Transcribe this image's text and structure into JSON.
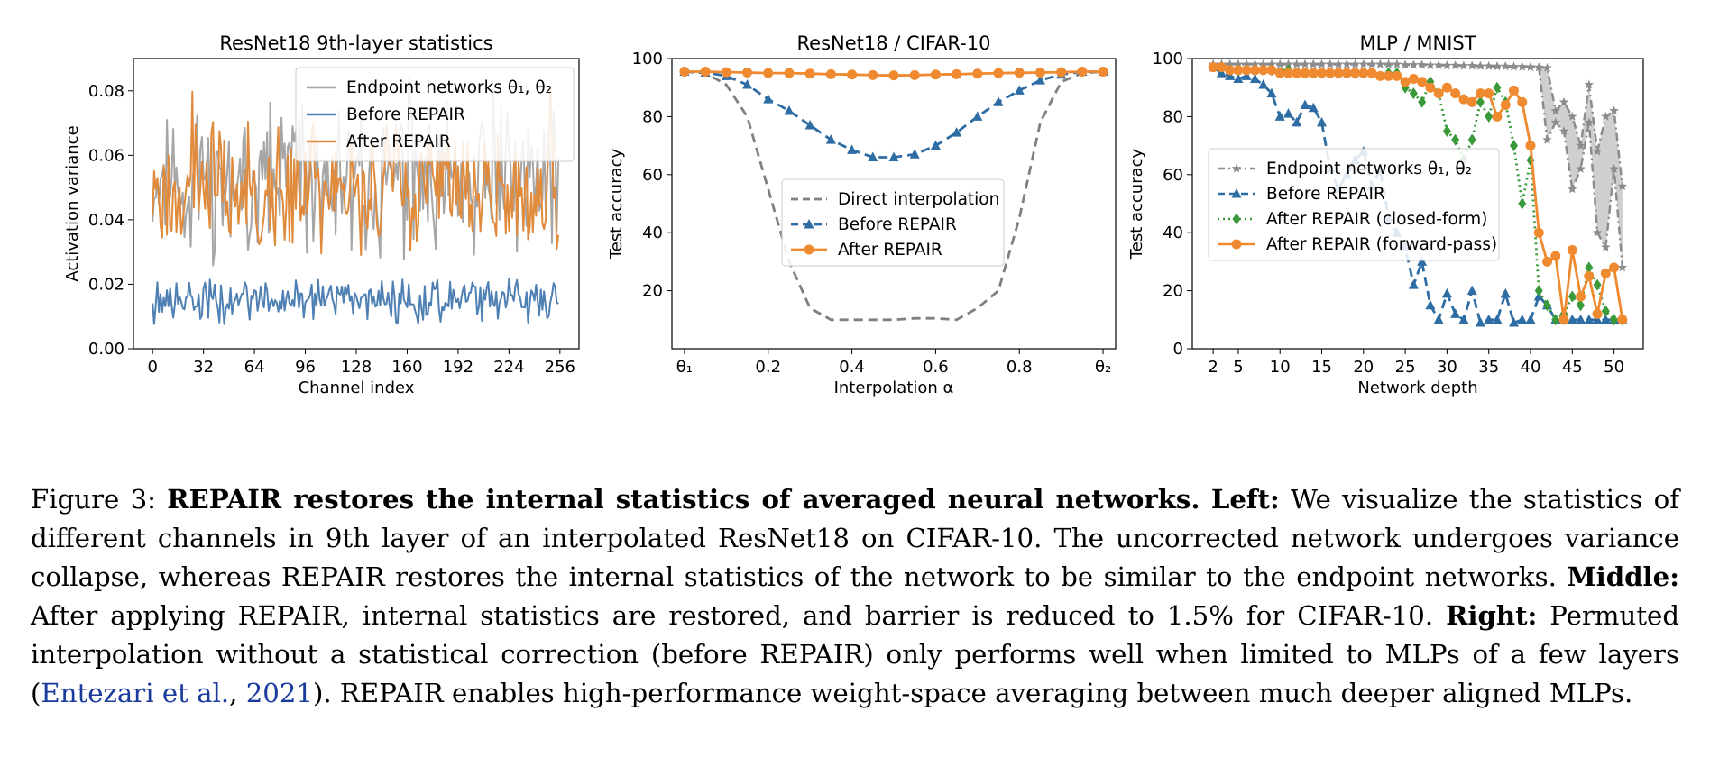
{
  "chart_data": [
    {
      "type": "line",
      "title": "ResNet18 9th-layer statistics",
      "xlabel": "Channel index",
      "ylabel": "Activation variance",
      "xlim": [
        -12,
        268
      ],
      "ylim": [
        0,
        0.09
      ],
      "xticks": [
        0,
        32,
        64,
        96,
        128,
        160,
        192,
        224,
        256
      ],
      "yticks": [
        0.0,
        0.02,
        0.04,
        0.06,
        0.08
      ],
      "ytick_labels": [
        "0.00",
        "0.02",
        "0.04",
        "0.06",
        "0.08"
      ],
      "legend_position": "top-right",
      "legend": [
        {
          "label": "Endpoint networks θ₁, θ₂",
          "color": "#a6a6a6"
        },
        {
          "label": "Before REPAIR",
          "color": "#4f80b3"
        },
        {
          "label": "After REPAIR",
          "color": "#e08a3c"
        }
      ],
      "series": [
        {
          "name": "Endpoint networks θ₁, θ₂",
          "color": "#a6a6a6",
          "mean": 0.052,
          "amp": 0.026,
          "seed": 11,
          "n": 256
        },
        {
          "name": "After REPAIR",
          "color": "#e08a3c",
          "mean": 0.05,
          "amp": 0.022,
          "seed": 23,
          "n": 256
        },
        {
          "name": "Before REPAIR",
          "color": "#4f80b3",
          "mean": 0.015,
          "amp": 0.008,
          "seed": 37,
          "n": 256
        }
      ]
    },
    {
      "type": "line",
      "title": "ResNet18 / CIFAR-10",
      "xlabel": "Interpolation α",
      "ylabel": "Test accuracy",
      "xlim": [
        -0.03,
        1.03
      ],
      "ylim": [
        0,
        100
      ],
      "xticks": [
        0,
        0.2,
        0.4,
        0.6,
        0.8,
        1.0
      ],
      "xtick_labels": [
        "θ₁",
        "0.2",
        "0.4",
        "0.6",
        "0.8",
        "θ₂"
      ],
      "yticks": [
        20,
        40,
        60,
        80,
        100
      ],
      "legend_position": "center",
      "legend": [
        {
          "label": "Direct interpolation",
          "color": "#808080",
          "style": "dashed"
        },
        {
          "label": "Before REPAIR",
          "color": "#2e6da4",
          "style": "dashed-triangle"
        },
        {
          "label": "After REPAIR",
          "color": "#f08a30",
          "style": "solid-circle"
        }
      ],
      "series": [
        {
          "name": "Direct interpolation",
          "color": "#808080",
          "x": [
            0,
            0.05,
            0.1,
            0.15,
            0.2,
            0.25,
            0.3,
            0.35,
            0.4,
            0.45,
            0.5,
            0.55,
            0.6,
            0.65,
            0.7,
            0.75,
            0.8,
            0.85,
            0.9,
            0.95,
            1.0
          ],
          "values": [
            95.5,
            95,
            91,
            80,
            55,
            30,
            14,
            10,
            10,
            10,
            10,
            10.5,
            10.5,
            10,
            14,
            20,
            45,
            78,
            92,
            95,
            95.5
          ]
        },
        {
          "name": "Before REPAIR",
          "color": "#2e6da4",
          "x": [
            0,
            0.05,
            0.1,
            0.15,
            0.2,
            0.25,
            0.3,
            0.35,
            0.4,
            0.45,
            0.5,
            0.55,
            0.6,
            0.65,
            0.7,
            0.75,
            0.8,
            0.85,
            0.9,
            0.95,
            1.0
          ],
          "values": [
            95.5,
            95.2,
            94,
            91,
            86,
            82,
            77,
            72,
            68.5,
            66,
            66,
            67,
            70,
            74.5,
            80,
            85,
            89,
            92.5,
            94.5,
            95.5,
            95.5
          ]
        },
        {
          "name": "After REPAIR",
          "color": "#f08a30",
          "x": [
            0,
            0.05,
            0.1,
            0.15,
            0.2,
            0.25,
            0.3,
            0.35,
            0.4,
            0.45,
            0.5,
            0.55,
            0.6,
            0.65,
            0.7,
            0.75,
            0.8,
            0.85,
            0.9,
            0.95,
            1.0
          ],
          "values": [
            95.5,
            95.5,
            95.3,
            95.2,
            95,
            95,
            94.8,
            94.6,
            94.5,
            94.3,
            94.2,
            94.3,
            94.5,
            94.6,
            94.8,
            95,
            95.1,
            95.2,
            95.3,
            95.5,
            95.5
          ]
        }
      ]
    },
    {
      "type": "line",
      "title": "MLP / MNIST",
      "xlabel": "Network depth",
      "ylabel": "Test accuracy",
      "xlim": [
        -0.5,
        53.5
      ],
      "ylim": [
        0,
        100
      ],
      "xticks": [
        2,
        5,
        10,
        15,
        20,
        25,
        30,
        35,
        40,
        45,
        50
      ],
      "yticks": [
        0,
        20,
        40,
        60,
        80,
        100
      ],
      "legend_position": "center-left",
      "legend": [
        {
          "label": "Endpoint networks θ₁, θ₂",
          "color": "#8c8c8c",
          "style": "dashdot-star"
        },
        {
          "label": "Before REPAIR",
          "color": "#2e6da4",
          "style": "dashed-triangle"
        },
        {
          "label": "After REPAIR (closed-form)",
          "color": "#3a9a3a",
          "style": "dotted-diamond"
        },
        {
          "label": "After REPAIR (forward-pass)",
          "color": "#f08a30",
          "style": "solid-circle"
        }
      ],
      "x": [
        2,
        3,
        4,
        5,
        6,
        7,
        8,
        9,
        10,
        11,
        12,
        13,
        14,
        15,
        16,
        17,
        18,
        19,
        20,
        21,
        22,
        23,
        24,
        25,
        26,
        27,
        28,
        29,
        30,
        31,
        32,
        33,
        34,
        35,
        36,
        37,
        38,
        39,
        40,
        41,
        42,
        43,
        44,
        45,
        46,
        47,
        48,
        49,
        50,
        51
      ],
      "series": [
        {
          "name": "Endpoint networks θ₁ (upper)",
          "color": "#8c8c8c",
          "values": [
            98,
            98,
            98,
            98,
            98,
            98,
            98,
            98,
            98,
            98,
            98,
            98,
            98,
            98,
            98,
            98,
            98,
            98,
            98,
            98,
            98,
            98,
            98,
            97.8,
            97.8,
            97.8,
            97.7,
            97.7,
            97.6,
            97.6,
            97.5,
            97.5,
            97.4,
            97.4,
            97.3,
            97.3,
            97.2,
            97.2,
            97.1,
            97,
            96.8,
            82,
            85,
            80,
            70,
            91,
            68,
            80,
            82,
            56
          ]
        },
        {
          "name": "Endpoint networks θ₂ (lower)",
          "color": "#8c8c8c",
          "values": [
            98,
            98,
            98,
            98,
            98,
            98,
            98,
            98,
            98,
            98,
            98,
            98,
            98,
            98,
            98,
            98,
            98,
            98,
            98,
            98,
            98,
            98,
            98,
            97.8,
            97.8,
            97.8,
            97.7,
            97.7,
            97.6,
            97.6,
            97.5,
            97.5,
            97.4,
            97.4,
            97.3,
            97.3,
            97.2,
            97.2,
            97.1,
            97,
            72,
            78,
            75,
            55,
            62,
            78,
            40,
            35,
            62,
            28
          ]
        },
        {
          "name": "Before REPAIR",
          "color": "#2e6da4",
          "values": [
            97,
            95,
            94,
            93,
            94,
            93,
            91,
            88,
            80,
            81,
            78,
            84,
            83,
            78,
            62,
            55,
            60,
            65,
            68,
            56,
            62,
            45,
            40,
            35,
            22,
            30,
            15,
            10,
            19,
            12,
            10,
            20,
            9,
            10,
            10,
            19,
            9,
            10,
            10,
            18,
            15,
            10,
            10,
            10,
            10,
            10,
            10,
            10,
            10,
            10
          ]
        },
        {
          "name": "After REPAIR (closed-form)",
          "color": "#3a9a3a",
          "values": [
            97,
            97,
            96,
            96,
            96,
            96,
            96,
            96,
            96,
            96,
            95,
            95,
            95,
            95,
            95,
            95,
            95,
            95,
            95,
            95,
            95,
            95,
            95,
            90,
            88,
            85,
            92,
            88,
            75,
            72,
            65,
            72,
            85,
            80,
            90,
            85,
            70,
            50,
            65,
            20,
            15,
            10,
            12,
            18,
            15,
            28,
            22,
            13,
            10,
            10
          ]
        },
        {
          "name": "After REPAIR (forward-pass)",
          "color": "#f08a30",
          "values": [
            97,
            97,
            96,
            96,
            96,
            96,
            96,
            96,
            95,
            95,
            95,
            95,
            95,
            95,
            95,
            95,
            95,
            95,
            95,
            95,
            94,
            94,
            94,
            92,
            93,
            92,
            90,
            88,
            90,
            88,
            86,
            85,
            88,
            88,
            80,
            84,
            89,
            85,
            70,
            40,
            30,
            32,
            10,
            34,
            18,
            25,
            12,
            26,
            28,
            10
          ]
        }
      ]
    }
  ],
  "caption": {
    "label": "Figure 3:",
    "bold_title": "REPAIR restores the internal statistics of averaged neural networks.",
    "left_label": "Left:",
    "left_text": "We visualize the statistics of different channels in 9th layer of an interpolated ResNet18 on CIFAR-10. The uncorrected network undergoes variance collapse, whereas REPAIR restores the internal statistics of the network to be similar to the endpoint networks.",
    "middle_label": "Middle:",
    "middle_text": "After applying REPAIR, internal statistics are restored, and barrier is reduced to 1.5% for CIFAR-10.",
    "right_label": "Right:",
    "right_text_1": "Permuted interpolation without a statistical correction (before REPAIR) only performs well when limited to MLPs of a few layers (",
    "cite_authors": "Entezari et al.",
    "cite_sep": ", ",
    "cite_year": "2021",
    "right_text_2": "). REPAIR enables high-performance weight-space averaging between much deeper aligned MLPs."
  }
}
